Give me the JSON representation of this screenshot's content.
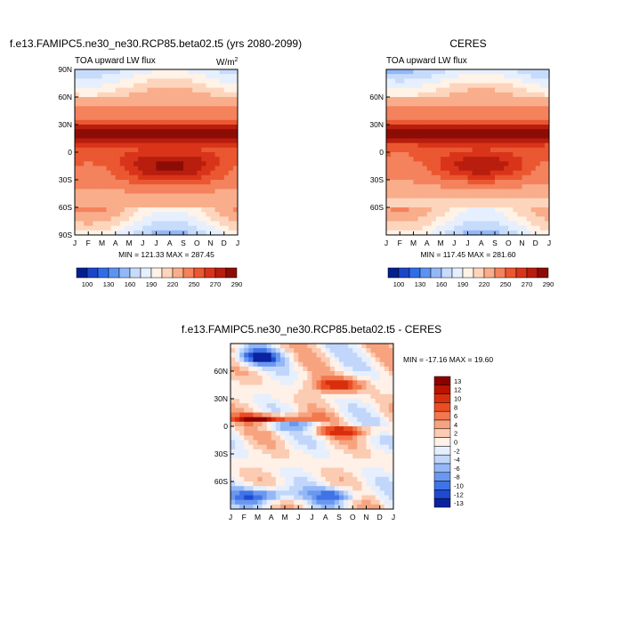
{
  "chart_data": [
    {
      "type": "heatmap",
      "title": "f.e13.FAMIPC5.ne30_ne30.RCP85.beta02.t5 (yrs 2080-2099)",
      "subtitle": "TOA upward LW flux",
      "units_label": "W/m",
      "units_sup": "2",
      "x_ticks": [
        "J",
        "F",
        "M",
        "A",
        "M",
        "J",
        "J",
        "A",
        "S",
        "O",
        "N",
        "D",
        "J"
      ],
      "y_ticks": [
        "90N",
        "60N",
        "30N",
        "0",
        "30S",
        "60S",
        "90S"
      ],
      "stats": "MIN = 121.33 MAX = 287.45",
      "min": 121.33,
      "max": 287.45,
      "colorbar_labels": [
        "100",
        "130",
        "160",
        "190",
        "220",
        "250",
        "270",
        "290"
      ]
    },
    {
      "type": "heatmap",
      "title": "CERES",
      "subtitle": "TOA upward LW flux",
      "x_ticks": [
        "J",
        "F",
        "M",
        "A",
        "M",
        "J",
        "J",
        "A",
        "S",
        "O",
        "N",
        "D",
        "J"
      ],
      "y_ticks": [
        "60N",
        "30N",
        "0",
        "30S",
        "60S"
      ],
      "stats": "MIN = 117.45 MAX = 281.60",
      "min": 117.45,
      "max": 281.6,
      "colorbar_labels": [
        "100",
        "130",
        "160",
        "190",
        "220",
        "250",
        "270",
        "290"
      ]
    },
    {
      "type": "heatmap",
      "title": "f.e13.FAMIPC5.ne30_ne30.RCP85.beta02.t5 - CERES",
      "x_ticks": [
        "J",
        "F",
        "M",
        "A",
        "M",
        "J",
        "J",
        "A",
        "S",
        "O",
        "N",
        "D",
        "J"
      ],
      "y_ticks": [
        "60N",
        "30N",
        "0",
        "30S",
        "60S"
      ],
      "stats": "MIN = -17.16 MAX =  19.60",
      "min": -17.16,
      "max": 19.6,
      "colorbar_labels": [
        "13",
        "12",
        "10",
        "8",
        "6",
        "4",
        "2",
        "0",
        "-2",
        "-4",
        "-6",
        "-8",
        "-10",
        "-12",
        "-13"
      ]
    }
  ],
  "colors": {
    "abs_scale": [
      "#00208f",
      "#1c46c9",
      "#2f6ee8",
      "#5c93f2",
      "#93b8f7",
      "#c7dbfb",
      "#e6effd",
      "#fff2e6",
      "#fdd5bc",
      "#f9ad8a",
      "#f4825c",
      "#ea5731",
      "#d9341a",
      "#b81d0d",
      "#8c0d05"
    ],
    "diff_scale": [
      "#8c0000",
      "#b81400",
      "#d92e0d",
      "#ec4c23",
      "#f2784d",
      "#f7a37f",
      "#fbcbb2",
      "#fff0e8",
      "#e6effd",
      "#c1d6fa",
      "#94b8f6",
      "#6a97f0",
      "#3f73e6",
      "#1f4ad0",
      "#0a22a0"
    ]
  }
}
